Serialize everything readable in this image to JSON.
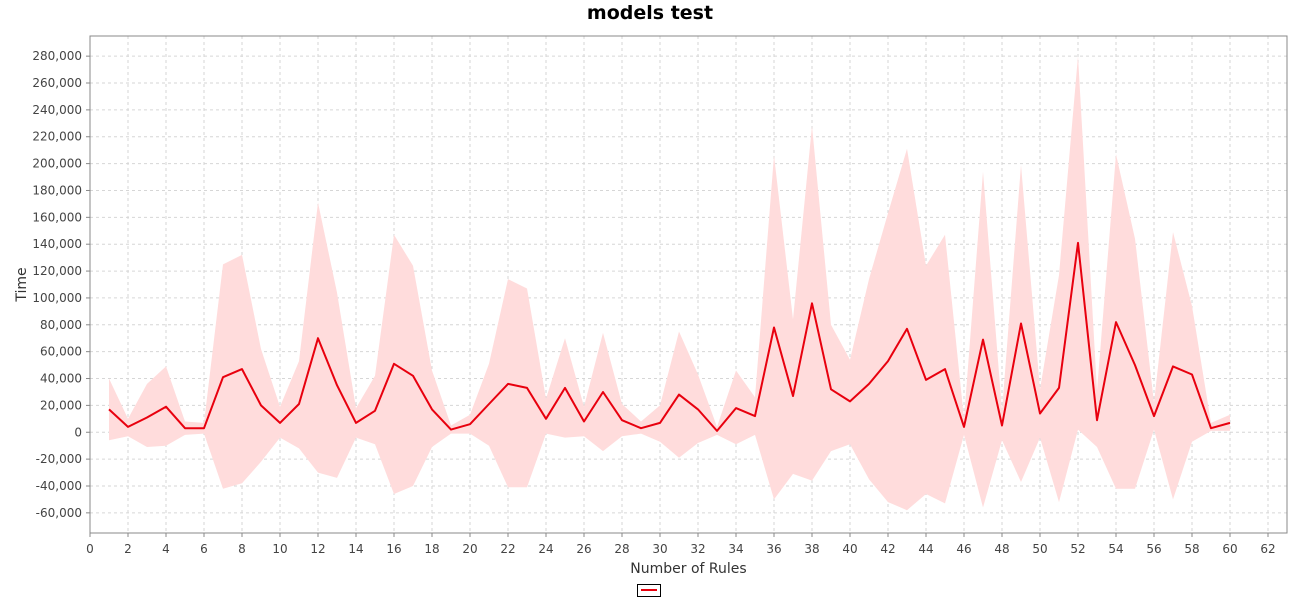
{
  "chart_data": {
    "type": "line",
    "title": "models test",
    "xlabel": "Number of Rules",
    "ylabel": "Time",
    "xlim": [
      0,
      63
    ],
    "ylim": [
      -75000,
      295000
    ],
    "x_ticks": [
      0,
      2,
      4,
      6,
      8,
      10,
      12,
      14,
      16,
      18,
      20,
      22,
      24,
      26,
      28,
      30,
      32,
      34,
      36,
      38,
      40,
      42,
      44,
      46,
      48,
      50,
      52,
      54,
      56,
      58,
      60,
      62
    ],
    "y_ticks": [
      -60000,
      -40000,
      -20000,
      0,
      20000,
      40000,
      60000,
      80000,
      100000,
      120000,
      140000,
      160000,
      180000,
      200000,
      220000,
      240000,
      260000,
      280000
    ],
    "y_tick_labels": [
      "-60,000",
      "-40,000",
      "-20,000",
      "0",
      "20,000",
      "40,000",
      "60,000",
      "80,000",
      "100,000",
      "120,000",
      "140,000",
      "160,000",
      "180,000",
      "200,000",
      "220,000",
      "240,000",
      "260,000",
      "280,000"
    ],
    "grid": true,
    "legend": "bottom-center",
    "series": [
      {
        "color": "#e8000e",
        "band_color": "#ffdcdc",
        "x": [
          1,
          2,
          3,
          4,
          5,
          6,
          7,
          8,
          9,
          10,
          11,
          12,
          13,
          14,
          15,
          16,
          17,
          18,
          19,
          20,
          21,
          22,
          23,
          24,
          25,
          26,
          27,
          28,
          29,
          30,
          31,
          32,
          33,
          34,
          35,
          36,
          37,
          38,
          39,
          40,
          41,
          42,
          43,
          44,
          45,
          46,
          47,
          48,
          49,
          50,
          51,
          52,
          53,
          54,
          55,
          56,
          57,
          58,
          59,
          60
        ],
        "values": [
          17000,
          4000,
          11000,
          19000,
          3000,
          3000,
          41000,
          47000,
          20000,
          7000,
          21000,
          70000,
          35000,
          7000,
          16000,
          51000,
          42000,
          17000,
          2000,
          6000,
          21000,
          36000,
          33000,
          10000,
          33000,
          8000,
          30000,
          9000,
          3000,
          7000,
          28000,
          17000,
          1000,
          18000,
          12000,
          78000,
          27000,
          96000,
          32000,
          23000,
          36000,
          53000,
          77000,
          39000,
          47000,
          4000,
          69000,
          5000,
          81000,
          14000,
          33000,
          141000,
          9000,
          82000,
          50000,
          12000,
          49000,
          43000,
          3000,
          7000
        ],
        "upper": [
          40000,
          10000,
          36000,
          49000,
          8000,
          7000,
          125000,
          132000,
          62000,
          19000,
          53000,
          171000,
          104000,
          18000,
          42000,
          147000,
          124000,
          46000,
          5000,
          13000,
          51000,
          114000,
          107000,
          25000,
          70000,
          19000,
          74000,
          21000,
          8000,
          20000,
          75000,
          43000,
          4000,
          46000,
          26000,
          206000,
          84000,
          228000,
          80000,
          54000,
          114000,
          163000,
          211000,
          124000,
          147000,
          10000,
          194000,
          16000,
          199000,
          32000,
          117000,
          280000,
          31000,
          207000,
          144000,
          22000,
          149000,
          94000,
          7000,
          13000
        ],
        "lower": [
          -6000,
          -3000,
          -11000,
          -10000,
          -2000,
          -1000,
          -42000,
          -38000,
          -22000,
          -4000,
          -12000,
          -30000,
          -34000,
          -4000,
          -9000,
          -46000,
          -40000,
          -11000,
          -1000,
          -1000,
          -10000,
          -41000,
          -41000,
          -1000,
          -4000,
          -3000,
          -14000,
          -3000,
          -1000,
          -7000,
          -19000,
          -8000,
          -2000,
          -9000,
          -2000,
          -50000,
          -31000,
          -36000,
          -14000,
          -9000,
          -35000,
          -52000,
          -58000,
          -46000,
          -53000,
          -2000,
          -56000,
          -6000,
          -37000,
          -4000,
          -52000,
          2000,
          -11000,
          -42000,
          -42000,
          2000,
          -50000,
          -7000,
          1000,
          1000
        ]
      }
    ]
  }
}
